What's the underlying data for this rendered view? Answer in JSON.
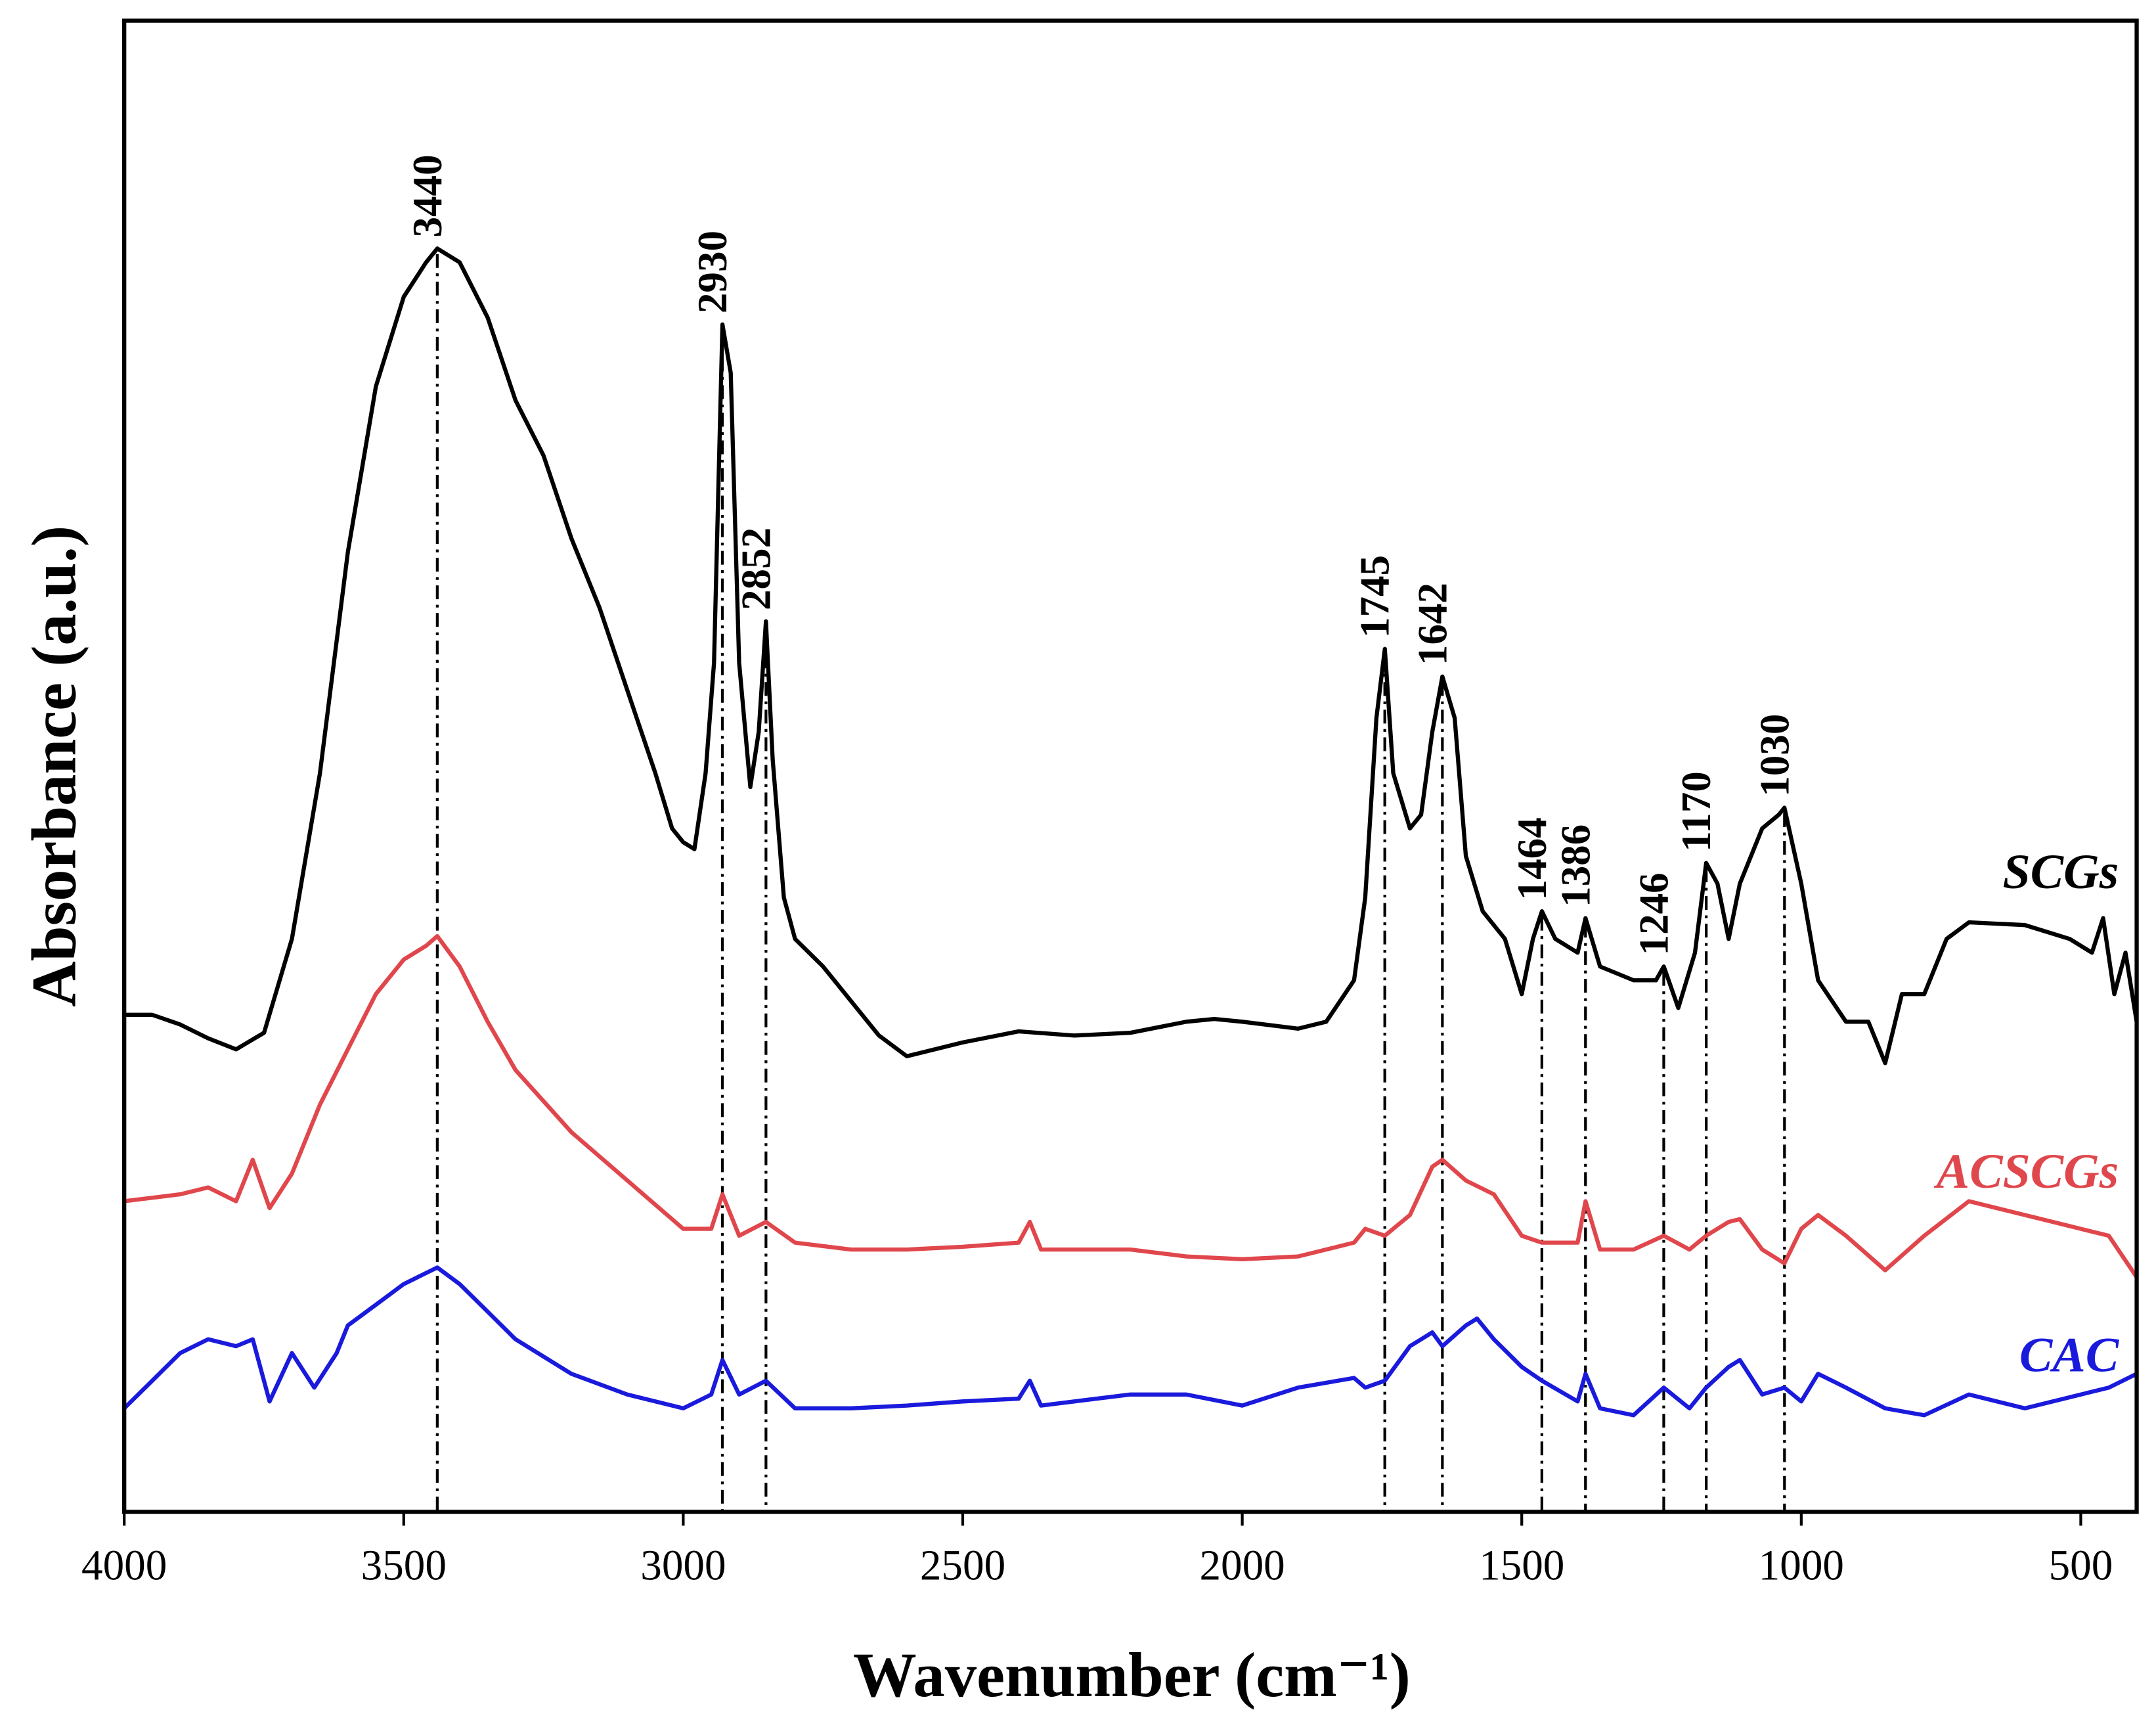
{
  "chart_data": {
    "type": "line",
    "x_label": "Wavenumber (cm⁻¹)",
    "y_label": "Absorbance (a.u.)",
    "xlim": [
      4000,
      400
    ],
    "xticks": [
      4000,
      3500,
      3000,
      2500,
      2000,
      1500,
      1000,
      500
    ],
    "ylim": [
      0,
      1080
    ],
    "peaks": [
      3440,
      2930,
      2852,
      1745,
      1642,
      1464,
      1386,
      1246,
      1170,
      1030
    ],
    "series": [
      {
        "name": "SCGs",
        "color": "#000000",
        "x": [
          4000,
          3950,
          3900,
          3850,
          3800,
          3750,
          3700,
          3650,
          3600,
          3550,
          3500,
          3460,
          3440,
          3400,
          3350,
          3300,
          3250,
          3200,
          3150,
          3100,
          3050,
          3020,
          3000,
          2980,
          2960,
          2945,
          2930,
          2915,
          2900,
          2880,
          2865,
          2852,
          2840,
          2820,
          2800,
          2750,
          2700,
          2650,
          2600,
          2500,
          2400,
          2300,
          2200,
          2100,
          2050,
          2000,
          1900,
          1850,
          1800,
          1780,
          1760,
          1745,
          1730,
          1700,
          1680,
          1660,
          1642,
          1620,
          1600,
          1570,
          1530,
          1500,
          1480,
          1464,
          1440,
          1400,
          1386,
          1360,
          1300,
          1260,
          1246,
          1220,
          1190,
          1170,
          1150,
          1130,
          1110,
          1070,
          1040,
          1030,
          1000,
          970,
          920,
          880,
          850,
          820,
          780,
          740,
          700,
          600,
          520,
          480,
          460,
          440,
          420,
          400
        ],
        "values": [
          360,
          360,
          353,
          343,
          335,
          347,
          415,
          535,
          695,
          815,
          880,
          905,
          915,
          905,
          865,
          805,
          765,
          705,
          655,
          595,
          535,
          495,
          485,
          480,
          535,
          615,
          860,
          825,
          615,
          525,
          565,
          645,
          545,
          445,
          415,
          395,
          370,
          345,
          330,
          340,
          348,
          345,
          347,
          355,
          357,
          355,
          350,
          355,
          385,
          445,
          575,
          625,
          535,
          495,
          505,
          565,
          605,
          575,
          475,
          435,
          415,
          375,
          415,
          435,
          415,
          405,
          430,
          395,
          385,
          385,
          395,
          365,
          405,
          470,
          455,
          415,
          455,
          495,
          505,
          510,
          455,
          385,
          355,
          355,
          325,
          375,
          375,
          415,
          427,
          425,
          415,
          405,
          430,
          375,
          405,
          355
        ]
      },
      {
        "name": "ACSCGs",
        "color": "#e0474c",
        "x": [
          4000,
          3900,
          3850,
          3800,
          3770,
          3740,
          3700,
          3650,
          3600,
          3550,
          3500,
          3460,
          3440,
          3400,
          3350,
          3300,
          3200,
          3100,
          3000,
          2950,
          2930,
          2900,
          2852,
          2800,
          2700,
          2600,
          2500,
          2400,
          2380,
          2360,
          2200,
          2100,
          2000,
          1900,
          1800,
          1780,
          1745,
          1700,
          1660,
          1642,
          1600,
          1550,
          1500,
          1464,
          1400,
          1386,
          1360,
          1300,
          1246,
          1200,
          1170,
          1130,
          1110,
          1070,
          1030,
          1000,
          970,
          920,
          850,
          780,
          700,
          600,
          500,
          450,
          400
        ],
        "values": [
          225,
          230,
          235,
          225,
          255,
          220,
          245,
          295,
          335,
          375,
          400,
          410,
          417,
          395,
          355,
          320,
          275,
          240,
          205,
          205,
          230,
          200,
          210,
          195,
          190,
          190,
          192,
          195,
          210,
          190,
          190,
          185,
          183,
          185,
          195,
          205,
          200,
          215,
          250,
          255,
          240,
          230,
          200,
          195,
          195,
          225,
          190,
          190,
          200,
          190,
          200,
          210,
          212,
          190,
          180,
          205,
          215,
          200,
          175,
          200,
          225,
          215,
          205,
          200,
          170
        ]
      },
      {
        "name": "CAC",
        "color": "#1a1adc",
        "x": [
          4000,
          3950,
          3900,
          3850,
          3800,
          3770,
          3740,
          3700,
          3660,
          3620,
          3600,
          3550,
          3500,
          3460,
          3440,
          3400,
          3350,
          3300,
          3200,
          3100,
          3000,
          2950,
          2930,
          2900,
          2852,
          2800,
          2700,
          2600,
          2500,
          2400,
          2380,
          2360,
          2200,
          2100,
          2000,
          1900,
          1800,
          1780,
          1745,
          1700,
          1660,
          1642,
          1600,
          1580,
          1550,
          1500,
          1464,
          1400,
          1386,
          1360,
          1300,
          1246,
          1200,
          1170,
          1130,
          1110,
          1070,
          1030,
          1000,
          970,
          920,
          850,
          780,
          700,
          600,
          500,
          450,
          400
        ],
        "values": [
          75,
          95,
          115,
          125,
          120,
          125,
          80,
          115,
          90,
          115,
          135,
          150,
          165,
          173,
          177,
          165,
          145,
          125,
          100,
          85,
          75,
          85,
          110,
          85,
          95,
          75,
          75,
          77,
          80,
          82,
          95,
          77,
          85,
          85,
          77,
          90,
          97,
          90,
          95,
          120,
          130,
          120,
          135,
          140,
          125,
          105,
          95,
          80,
          100,
          75,
          70,
          90,
          75,
          90,
          105,
          110,
          85,
          90,
          80,
          100,
          90,
          75,
          70,
          85,
          75,
          85,
          90,
          100
        ]
      }
    ]
  }
}
